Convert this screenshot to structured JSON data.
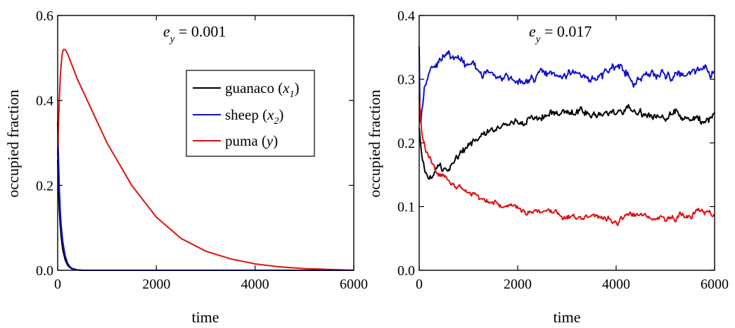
{
  "chart_data": [
    {
      "type": "line",
      "annotation": {
        "symbol": "e",
        "subscript": "y",
        "value_text": " = 0.001"
      },
      "xlabel": "time",
      "ylabel": "occupied fraction",
      "xlim": [
        0,
        6000
      ],
      "ylim": [
        0,
        0.6
      ],
      "xticks": [
        0,
        2000,
        4000,
        6000
      ],
      "xtick_labels": [
        "0",
        "2000",
        "4000",
        "6000"
      ],
      "yticks": [
        0,
        0.2,
        0.4,
        0.6
      ],
      "ytick_labels": [
        "0.0",
        "0.2",
        "0.4",
        "0.6"
      ],
      "grid": false,
      "legend": {
        "placement": "top-right",
        "entries": [
          {
            "name": "guanaco",
            "var": "x",
            "sub": "1",
            "color": "#000000"
          },
          {
            "name": "sheep",
            "var": "x",
            "sub": "2",
            "color": "#1010d0"
          },
          {
            "name": "puma",
            "var": "y",
            "sub": "",
            "color": "#e01010"
          }
        ]
      },
      "series": [
        {
          "name": "guanaco",
          "color": "#000000",
          "noise": 0,
          "x": [
            0,
            30,
            60,
            100,
            150,
            200,
            250,
            300,
            400,
            500,
            6000
          ],
          "y": [
            0.26,
            0.15,
            0.09,
            0.05,
            0.025,
            0.012,
            0.006,
            0.003,
            0.001,
            0,
            0
          ]
        },
        {
          "name": "sheep",
          "color": "#1010d0",
          "noise": 0,
          "x": [
            0,
            30,
            60,
            100,
            150,
            200,
            250,
            300,
            400,
            500,
            6000
          ],
          "y": [
            0.35,
            0.2,
            0.12,
            0.07,
            0.035,
            0.017,
            0.008,
            0.004,
            0.001,
            0,
            0
          ]
        },
        {
          "name": "puma",
          "color": "#e01010",
          "noise": 0,
          "x": [
            0,
            20,
            50,
            80,
            110,
            150,
            200,
            300,
            400,
            600,
            800,
            1000,
            1500,
            2000,
            2500,
            3000,
            3500,
            4000,
            4500,
            5000,
            5500,
            6000
          ],
          "y": [
            0.27,
            0.36,
            0.45,
            0.5,
            0.52,
            0.52,
            0.51,
            0.48,
            0.45,
            0.4,
            0.35,
            0.3,
            0.2,
            0.125,
            0.075,
            0.045,
            0.027,
            0.015,
            0.008,
            0.004,
            0.002,
            0.0
          ]
        }
      ]
    },
    {
      "type": "line",
      "annotation": {
        "symbol": "e",
        "subscript": "y",
        "value_text": " = 0.017"
      },
      "xlabel": "time",
      "ylabel": "occupied fraction",
      "xlim": [
        0,
        6000
      ],
      "ylim": [
        0,
        0.4
      ],
      "xticks": [
        0,
        2000,
        4000,
        6000
      ],
      "xtick_labels": [
        "0",
        "2000",
        "4000",
        "6000"
      ],
      "yticks": [
        0,
        0.1,
        0.2,
        0.3,
        0.4
      ],
      "ytick_labels": [
        "0.0",
        "0.1",
        "0.2",
        "0.3",
        "0.4"
      ],
      "grid": false,
      "series": [
        {
          "name": "sheep",
          "color": "#1010d0",
          "noise": 0.006,
          "x": [
            0,
            20,
            50,
            100,
            200,
            300,
            400,
            500,
            600,
            700,
            800,
            1000,
            1200,
            1400,
            1600,
            1800,
            2000,
            2200,
            2400,
            2600,
            2800,
            3000,
            3200,
            3400,
            3600,
            3800,
            4000,
            4200,
            4400,
            4600,
            4800,
            5000,
            5200,
            5400,
            5600,
            5800,
            6000
          ],
          "y": [
            0.35,
            0.22,
            0.25,
            0.29,
            0.31,
            0.325,
            0.33,
            0.335,
            0.34,
            0.335,
            0.33,
            0.325,
            0.315,
            0.31,
            0.3,
            0.3,
            0.305,
            0.3,
            0.305,
            0.31,
            0.305,
            0.31,
            0.315,
            0.305,
            0.3,
            0.31,
            0.32,
            0.315,
            0.3,
            0.31,
            0.315,
            0.305,
            0.31,
            0.305,
            0.315,
            0.32,
            0.305
          ]
        },
        {
          "name": "guanaco",
          "color": "#000000",
          "noise": 0.005,
          "x": [
            0,
            30,
            60,
            100,
            150,
            200,
            300,
            400,
            500,
            600,
            800,
            1000,
            1200,
            1400,
            1600,
            1800,
            2000,
            2200,
            2400,
            2600,
            2800,
            3000,
            3200,
            3400,
            3600,
            3800,
            4000,
            4200,
            4400,
            4600,
            4800,
            5000,
            5200,
            5400,
            5600,
            5800,
            6000
          ],
          "y": [
            0.22,
            0.19,
            0.17,
            0.155,
            0.145,
            0.14,
            0.145,
            0.155,
            0.16,
            0.165,
            0.18,
            0.195,
            0.21,
            0.22,
            0.225,
            0.23,
            0.235,
            0.24,
            0.24,
            0.245,
            0.245,
            0.245,
            0.25,
            0.245,
            0.245,
            0.245,
            0.25,
            0.255,
            0.25,
            0.245,
            0.245,
            0.24,
            0.245,
            0.24,
            0.235,
            0.235,
            0.24
          ]
        },
        {
          "name": "puma",
          "color": "#e01010",
          "noise": 0.004,
          "x": [
            0,
            20,
            50,
            100,
            150,
            200,
            300,
            400,
            600,
            800,
            1000,
            1200,
            1400,
            1600,
            1800,
            2000,
            2200,
            2400,
            2600,
            2800,
            3000,
            3200,
            3400,
            3600,
            3800,
            4000,
            4200,
            4400,
            4600,
            4800,
            5000,
            5200,
            5400,
            5600,
            5800,
            6000
          ],
          "y": [
            0.27,
            0.25,
            0.22,
            0.2,
            0.185,
            0.175,
            0.165,
            0.155,
            0.14,
            0.13,
            0.12,
            0.115,
            0.11,
            0.105,
            0.1,
            0.098,
            0.095,
            0.093,
            0.09,
            0.088,
            0.085,
            0.08,
            0.08,
            0.085,
            0.082,
            0.08,
            0.083,
            0.085,
            0.082,
            0.08,
            0.08,
            0.082,
            0.085,
            0.088,
            0.09,
            0.088
          ]
        }
      ]
    }
  ]
}
